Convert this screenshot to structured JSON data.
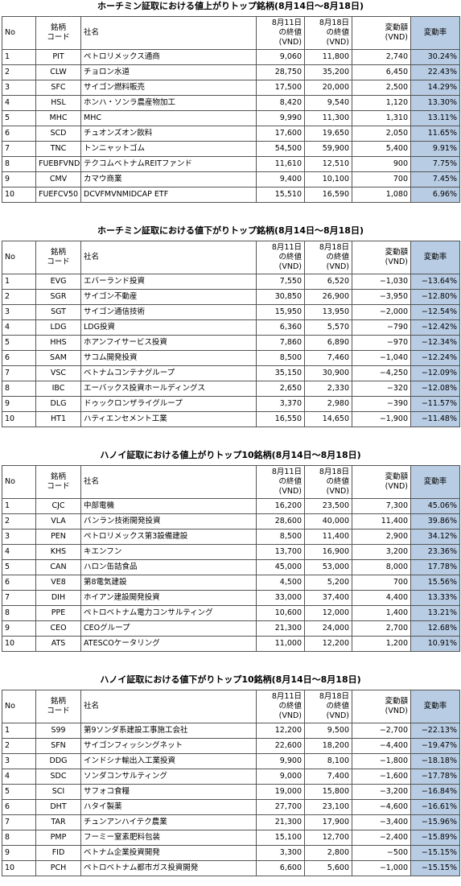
{
  "tables": [
    {
      "title": "ホーチミン証取における値上がりトップ銘柄(8月14日～8月18日)",
      "header": [
        "No",
        "銘柄\nコード",
        "社名",
        "8月11日\nの終値\n(VND)",
        "8月18日\nの終値\n(VND)",
        "変動額\n(VND)",
        "変動率"
      ],
      "rows": [
        [
          "1",
          "PIT",
          "ペトロリメックス通商",
          "9,060",
          "11,800",
          "2,740",
          "30.24%"
        ],
        [
          "2",
          "CLW",
          "チョロン水道",
          "28,750",
          "35,200",
          "6,450",
          "22.43%"
        ],
        [
          "3",
          "SFC",
          "サイゴン燃料販売",
          "17,500",
          "20,000",
          "2,500",
          "14.29%"
        ],
        [
          "4",
          "HSL",
          "ホンハ・ソンラ農産物加工",
          "8,420",
          "9,540",
          "1,120",
          "13.30%"
        ],
        [
          "5",
          "MHC",
          "MHC",
          "9,990",
          "11,300",
          "1,310",
          "13.11%"
        ],
        [
          "6",
          "SCD",
          "チュオンズオン飲料",
          "17,600",
          "19,650",
          "2,050",
          "11.65%"
        ],
        [
          "7",
          "TNC",
          "トンニャットゴム",
          "54,500",
          "59,900",
          "5,400",
          "9.91%"
        ],
        [
          "8",
          "FUEBFVND",
          "テクコムベトナムREITファンド",
          "11,610",
          "12,510",
          "900",
          "7.75%"
        ],
        [
          "9",
          "CMV",
          "カマウ商業",
          "9,400",
          "10,100",
          "700",
          "7.45%"
        ],
        [
          "10",
          "FUEFCV50",
          "DCVFMVNMIDCAP ETF",
          "15,510",
          "16,590",
          "1,080",
          "6.96%"
        ]
      ]
    },
    {
      "title": "ホーチミン証取における値下がりトップ銘柄(8月14日～8月18日)",
      "header": [
        "No",
        "銘柄\nコード",
        "社名",
        "8月11日\nの終値\n(VND)",
        "8月18日\nの終値\n(VND)",
        "変動額\n(VND)",
        "変動率"
      ],
      "rows": [
        [
          "1",
          "EVG",
          "エバーランド投資",
          "7,550",
          "6,520",
          "−1,030",
          "−13.64%"
        ],
        [
          "2",
          "SGR",
          "サイゴン不動産",
          "30,850",
          "26,900",
          "−3,950",
          "−12.80%"
        ],
        [
          "3",
          "SGT",
          "サイゴン通信技術",
          "15,950",
          "13,950",
          "−2,000",
          "−12.54%"
        ],
        [
          "4",
          "LDG",
          "LDG投資",
          "6,360",
          "5,570",
          "−790",
          "−12.42%"
        ],
        [
          "5",
          "HHS",
          "ホアンフイサービス投資",
          "7,860",
          "6,890",
          "−970",
          "−12.34%"
        ],
        [
          "6",
          "SAM",
          "サコム開発投資",
          "8,500",
          "7,460",
          "−1,040",
          "−12.24%"
        ],
        [
          "7",
          "VSC",
          "ベトナムコンテナグループ",
          "35,150",
          "30,900",
          "−4,250",
          "−12.09%"
        ],
        [
          "8",
          "IBC",
          "エーバックス投資ホールディングス",
          "2,650",
          "2,330",
          "−320",
          "−12.08%"
        ],
        [
          "9",
          "DLG",
          "ドゥックロンザライグループ",
          "3,370",
          "2,980",
          "−390",
          "−11.57%"
        ],
        [
          "10",
          "HT1",
          "ハティエンセメント工業",
          "16,550",
          "14,650",
          "−1,900",
          "−11.48%"
        ]
      ]
    },
    {
      "title": "ハノイ証取における値上がりトップ10銘柄(8月14日～8月18日)",
      "header": [
        "No",
        "銘柄\nコード",
        "社名",
        "8月11日\nの終値\n(VND)",
        "8月18日\nの終値\n(VND)",
        "変動額\n(VND)",
        "変動率"
      ],
      "rows": [
        [
          "1",
          "CJC",
          "中部電機",
          "16,200",
          "23,500",
          "7,300",
          "45.06%"
        ],
        [
          "2",
          "VLA",
          "バンラン技術開発投資",
          "28,600",
          "40,000",
          "11,400",
          "39.86%"
        ],
        [
          "3",
          "PEN",
          "ペトロリメックス第3設備建設",
          "8,500",
          "11,400",
          "2,900",
          "34.12%"
        ],
        [
          "4",
          "KHS",
          "キエンフン",
          "13,700",
          "16,900",
          "3,200",
          "23.36%"
        ],
        [
          "5",
          "CAN",
          "ハロン缶詰食品",
          "45,000",
          "53,000",
          "8,000",
          "17.78%"
        ],
        [
          "6",
          "VE8",
          "第8電気建設",
          "4,500",
          "5,200",
          "700",
          "15.56%"
        ],
        [
          "7",
          "DIH",
          "ホイアン建設開発投資",
          "33,000",
          "37,400",
          "4,400",
          "13.33%"
        ],
        [
          "8",
          "PPE",
          "ペトロベトナム電力コンサルティング",
          "10,600",
          "12,000",
          "1,400",
          "13.21%"
        ],
        [
          "9",
          "CEO",
          "CEOグループ",
          "21,300",
          "24,000",
          "2,700",
          "12.68%"
        ],
        [
          "10",
          "ATS",
          "ATESCOケータリング",
          "11,000",
          "12,200",
          "1,200",
          "10.91%"
        ]
      ]
    },
    {
      "title": "ハノイ証取における値下がりトップ10銘柄(8月14日～8月18日)",
      "header": [
        "No",
        "銘柄\nコード",
        "社名",
        "8月11日\nの終値\n(VND)",
        "8月18日\nの終値\n(VND)",
        "変動額\n(VND)",
        "変動率"
      ],
      "rows": [
        [
          "1",
          "S99",
          "第9ソンダ系建設工事施工会社",
          "12,200",
          "9,500",
          "−2,700",
          "−22.13%"
        ],
        [
          "2",
          "SFN",
          "サイゴンフィッシングネット",
          "22,600",
          "18,200",
          "−4,400",
          "−19.47%"
        ],
        [
          "3",
          "DDG",
          "インドシナ輸出入工業投資",
          "9,900",
          "8,100",
          "−1,800",
          "−18.18%"
        ],
        [
          "4",
          "SDC",
          "ソンダコンサルティング",
          "9,000",
          "7,400",
          "−1,600",
          "−17.78%"
        ],
        [
          "5",
          "SCI",
          "サフォコ食糧",
          "19,000",
          "15,800",
          "−3,200",
          "−16.84%"
        ],
        [
          "6",
          "DHT",
          "ハタイ製薬",
          "27,700",
          "23,100",
          "−4,600",
          "−16.61%"
        ],
        [
          "7",
          "TAR",
          "チュンアンハイテク農業",
          "21,300",
          "17,900",
          "−3,400",
          "−15.96%"
        ],
        [
          "8",
          "PMP",
          "フーミー窒素肥料包装",
          "15,100",
          "12,700",
          "−2,400",
          "−15.89%"
        ],
        [
          "9",
          "FID",
          "ベトナム企業投資開発",
          "3,300",
          "2,800",
          "−500",
          "−15.15%"
        ],
        [
          "10",
          "PCH",
          "ペトロベトナム都市ガス投資開発",
          "6,600",
          "5,600",
          "−1,000",
          "−15.15%"
        ]
      ]
    }
  ]
}
